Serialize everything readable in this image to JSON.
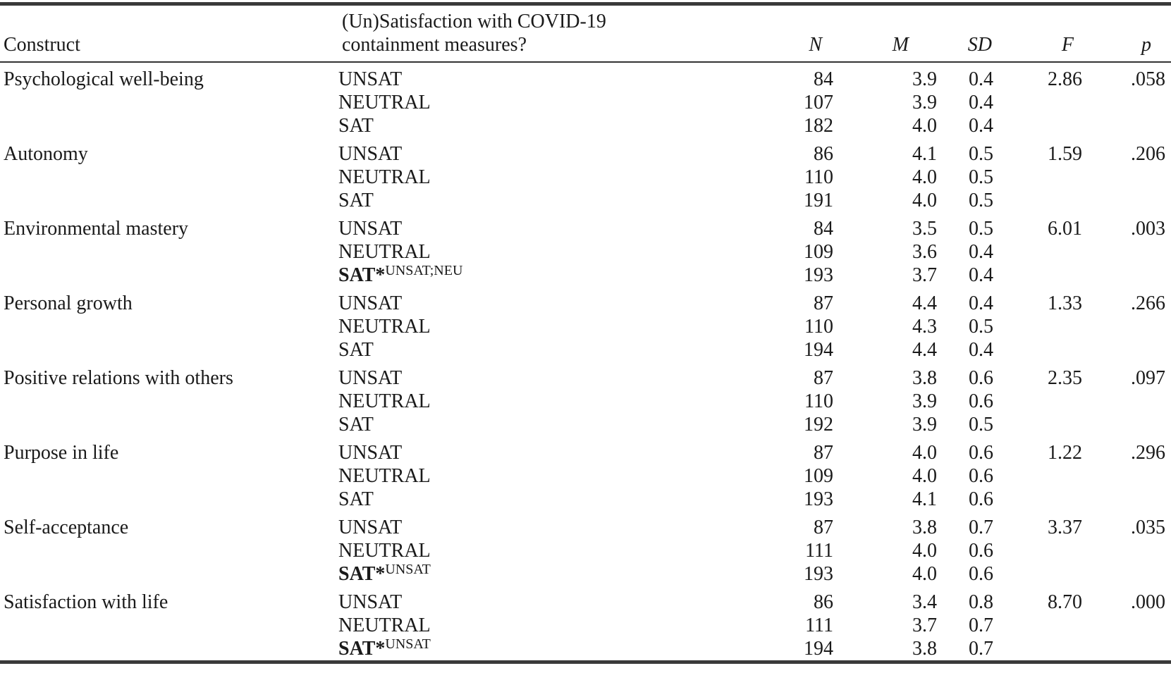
{
  "table": {
    "header": {
      "construct": "Construct",
      "group_line1": "(Un)Satisfaction with COVID-19",
      "group_line2": "containment measures?",
      "n": "N",
      "m": "M",
      "sd": "SD",
      "f": "F",
      "p": "p"
    },
    "groups": [
      {
        "construct": "Psychological well-being",
        "rows": [
          {
            "label": "UNSAT",
            "n": "84",
            "m": "3.9",
            "sd": "0.4",
            "f": "2.86",
            "p": ".058"
          },
          {
            "label": "NEUTRAL",
            "n": "107",
            "m": "3.9",
            "sd": "0.4"
          },
          {
            "label": "SAT",
            "n": "182",
            "m": "4.0",
            "sd": "0.4"
          }
        ]
      },
      {
        "construct": "Autonomy",
        "rows": [
          {
            "label": "UNSAT",
            "n": "86",
            "m": "4.1",
            "sd": "0.5",
            "f": "1.59",
            "p": ".206"
          },
          {
            "label": "NEUTRAL",
            "n": "110",
            "m": "4.0",
            "sd": "0.5"
          },
          {
            "label": "SAT",
            "n": "191",
            "m": "4.0",
            "sd": "0.5"
          }
        ]
      },
      {
        "construct": "Environmental mastery",
        "rows": [
          {
            "label": "UNSAT",
            "n": "84",
            "m": "3.5",
            "sd": "0.5",
            "f": "6.01",
            "p": ".003"
          },
          {
            "label": "NEUTRAL",
            "n": "109",
            "m": "3.6",
            "sd": "0.4"
          },
          {
            "label": "SAT*",
            "label_sup": "UNSAT;NEU",
            "n": "193",
            "m": "3.7",
            "sd": "0.4"
          }
        ]
      },
      {
        "construct": "Personal growth",
        "rows": [
          {
            "label": "UNSAT",
            "n": "87",
            "m": "4.4",
            "sd": "0.4",
            "f": "1.33",
            "p": ".266"
          },
          {
            "label": "NEUTRAL",
            "n": "110",
            "m": "4.3",
            "sd": "0.5"
          },
          {
            "label": "SAT",
            "n": "194",
            "m": "4.4",
            "sd": "0.4"
          }
        ]
      },
      {
        "construct": "Positive relations with others",
        "rows": [
          {
            "label": "UNSAT",
            "n": "87",
            "m": "3.8",
            "sd": "0.6",
            "f": "2.35",
            "p": ".097"
          },
          {
            "label": "NEUTRAL",
            "n": "110",
            "m": "3.9",
            "sd": "0.6"
          },
          {
            "label": "SAT",
            "n": "192",
            "m": "3.9",
            "sd": "0.5"
          }
        ]
      },
      {
        "construct": "Purpose in life",
        "rows": [
          {
            "label": "UNSAT",
            "n": "87",
            "m": "4.0",
            "sd": "0.6",
            "f": "1.22",
            "p": ".296"
          },
          {
            "label": "NEUTRAL",
            "n": "109",
            "m": "4.0",
            "sd": "0.6"
          },
          {
            "label": "SAT",
            "n": "193",
            "m": "4.1",
            "sd": "0.6"
          }
        ]
      },
      {
        "construct": "Self-acceptance",
        "rows": [
          {
            "label": "UNSAT",
            "n": "87",
            "m": "3.8",
            "sd": "0.7",
            "f": "3.37",
            "p": ".035"
          },
          {
            "label": "NEUTRAL",
            "n": "111",
            "m": "4.0",
            "sd": "0.6"
          },
          {
            "label": "SAT*",
            "label_sup": "UNSAT",
            "n": "193",
            "m": "4.0",
            "sd": "0.6"
          }
        ]
      },
      {
        "construct": "Satisfaction with life",
        "rows": [
          {
            "label": "UNSAT",
            "n": "86",
            "m": "3.4",
            "sd": "0.8",
            "f": "8.70",
            "p": ".000"
          },
          {
            "label": "NEUTRAL",
            "n": "111",
            "m": "3.7",
            "sd": "0.7"
          },
          {
            "label": "SAT*",
            "label_sup": "UNSAT",
            "n": "194",
            "m": "3.8",
            "sd": "0.7"
          }
        ]
      }
    ]
  }
}
